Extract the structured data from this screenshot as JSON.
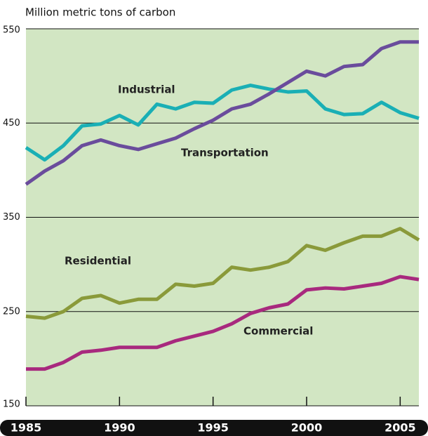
{
  "chart_data": {
    "type": "line",
    "y_axis_label": "Million metric tons of carbon",
    "x": [
      1985,
      1986,
      1987,
      1988,
      1989,
      1990,
      1991,
      1992,
      1993,
      1994,
      1995,
      1996,
      1997,
      1998,
      1999,
      2000,
      2001,
      2002,
      2003,
      2004,
      2005,
      2006
    ],
    "series": [
      {
        "name": "Industrial",
        "color": "#1aafb5",
        "values": [
          424,
          411,
          426,
          447,
          449,
          458,
          448,
          470,
          465,
          472,
          471,
          485,
          490,
          486,
          483,
          484,
          465,
          459,
          460,
          472,
          461,
          455
        ]
      },
      {
        "name": "Transportation",
        "color": "#6a4c9c",
        "values": [
          385,
          399,
          410,
          426,
          432,
          426,
          422,
          428,
          434,
          444,
          453,
          465,
          470,
          481,
          493,
          505,
          500,
          510,
          512,
          529,
          536,
          536
        ]
      },
      {
        "name": "Residential",
        "color": "#8a9a3a",
        "values": [
          245,
          243,
          250,
          264,
          267,
          259,
          263,
          263,
          279,
          277,
          280,
          297,
          294,
          297,
          303,
          320,
          315,
          323,
          330,
          330,
          338,
          326
        ]
      },
      {
        "name": "Commercial",
        "color": "#a8297e",
        "values": [
          189,
          189,
          196,
          207,
          209,
          212,
          212,
          212,
          219,
          224,
          229,
          237,
          248,
          254,
          258,
          273,
          275,
          274,
          277,
          280,
          287,
          284
        ]
      }
    ],
    "xlim": [
      1985,
      2006
    ],
    "xticks": [
      1985,
      1990,
      1995,
      2000,
      2005
    ],
    "ylim": [
      150,
      550
    ],
    "yticks": [
      150,
      250,
      350,
      450,
      550
    ],
    "grid": true
  }
}
